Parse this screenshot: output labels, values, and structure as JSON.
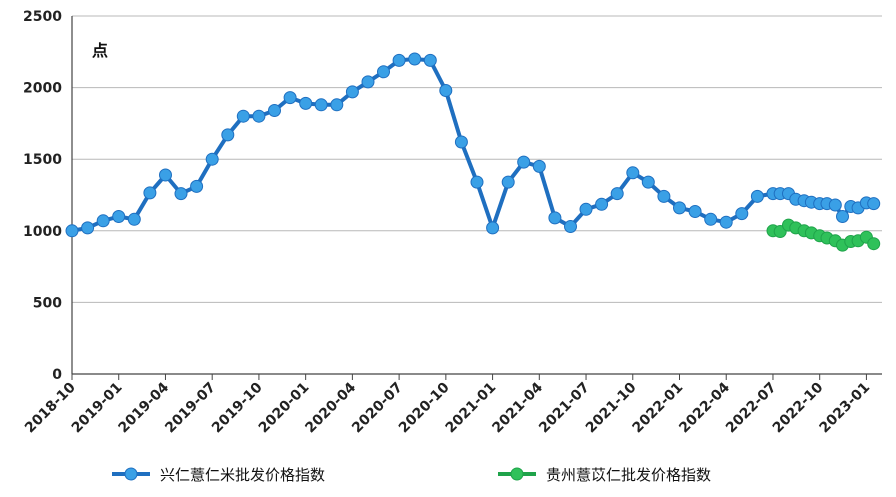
{
  "chart_data": {
    "type": "line",
    "ylabel": "点",
    "ylim": [
      0,
      2500
    ],
    "yticks": [
      0,
      500,
      1000,
      1500,
      2000,
      2500
    ],
    "grid": true,
    "legend_position": "bottom",
    "xticks": [
      "2018-10",
      "2019-01",
      "2019-04",
      "2019-07",
      "2019-10",
      "2020-01",
      "2020-04",
      "2020-07",
      "2020-10",
      "2021-01",
      "2021-04",
      "2021-07",
      "2021-10",
      "2022-01",
      "2022-04",
      "2022-07",
      "2022-10",
      "2023-01"
    ],
    "series": [
      {
        "name": "兴仁薏仁米批发价格指数",
        "color": "#1f6fc0",
        "marker_color": "#3aa0e6",
        "x": [
          "2018-10-01",
          "2018-11-01",
          "2018-12-01",
          "2019-01-01",
          "2019-02-01",
          "2019-03-01",
          "2019-04-01",
          "2019-05-01",
          "2019-06-01",
          "2019-07-01",
          "2019-08-01",
          "2019-09-01",
          "2019-10-01",
          "2019-11-01",
          "2019-12-01",
          "2020-01-01",
          "2020-02-01",
          "2020-03-01",
          "2020-04-01",
          "2020-05-01",
          "2020-06-01",
          "2020-07-01",
          "2020-08-01",
          "2020-09-01",
          "2020-10-01",
          "2020-11-01",
          "2020-12-01",
          "2021-01-01",
          "2021-02-01",
          "2021-03-01",
          "2021-04-01",
          "2021-05-01",
          "2021-06-01",
          "2021-07-01",
          "2021-08-01",
          "2021-09-01",
          "2021-10-01",
          "2021-11-01",
          "2021-12-01",
          "2022-01-01",
          "2022-02-01",
          "2022-03-01",
          "2022-04-01",
          "2022-05-01",
          "2022-06-01",
          "2022-07-01",
          "2022-07-15",
          "2022-08-01",
          "2022-08-15",
          "2022-09-01",
          "2022-09-15",
          "2022-10-01",
          "2022-10-15",
          "2022-11-01",
          "2022-11-15",
          "2022-12-01",
          "2022-12-15",
          "2023-01-01",
          "2023-01-15"
        ],
        "values": [
          1000,
          1020,
          1070,
          1100,
          1080,
          1265,
          1390,
          1260,
          1310,
          1500,
          1670,
          1800,
          1800,
          1840,
          1930,
          1890,
          1880,
          1880,
          1970,
          2040,
          2110,
          2190,
          2200,
          2190,
          1980,
          1620,
          1340,
          1020,
          1340,
          1480,
          1450,
          1090,
          1030,
          1150,
          1185,
          1260,
          1405,
          1340,
          1240,
          1160,
          1135,
          1080,
          1060,
          1120,
          1240,
          1260,
          1260,
          1260,
          1220,
          1210,
          1200,
          1190,
          1190,
          1180,
          1100,
          1170,
          1160,
          1195,
          1190
        ]
      },
      {
        "name": "贵州薏苡仁批发价格指数",
        "color": "#1fa34a",
        "marker_color": "#2fc15a",
        "x": [
          "2022-07-01",
          "2022-07-15",
          "2022-08-01",
          "2022-08-15",
          "2022-09-01",
          "2022-09-15",
          "2022-10-01",
          "2022-10-15",
          "2022-11-01",
          "2022-11-15",
          "2022-12-01",
          "2022-12-15",
          "2023-01-01",
          "2023-01-15"
        ],
        "values": [
          1000,
          995,
          1040,
          1020,
          1000,
          985,
          965,
          950,
          930,
          900,
          925,
          930,
          955,
          910
        ]
      }
    ]
  }
}
